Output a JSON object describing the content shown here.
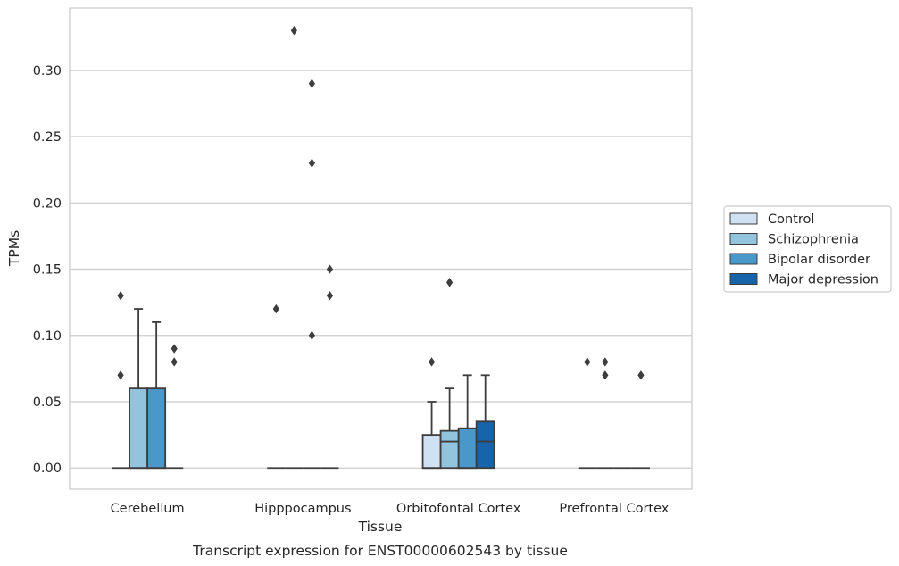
{
  "chart_data": {
    "type": "box",
    "title": "",
    "caption": "Transcript expression for ENST00000602543 by tissue",
    "xlabel": "Tissue",
    "ylabel": "TPMs",
    "ylim": [
      -0.016,
      0.347
    ],
    "yticks": [
      "0.00",
      "0.05",
      "0.10",
      "0.15",
      "0.20",
      "0.25",
      "0.30"
    ],
    "grid": true,
    "legend_position": "right",
    "categories": [
      "Cerebellum",
      "Hipppocampus",
      "Orbitofontal Cortex",
      "Prefrontal Cortex"
    ],
    "series": [
      {
        "name": "Control",
        "color": "#cfe1f2",
        "boxes": [
          {
            "q1": 0,
            "median": 0,
            "q3": 0,
            "whisker_low": 0,
            "whisker_high": 0,
            "outliers": [
              0.13,
              0.07
            ]
          },
          {
            "q1": 0,
            "median": 0,
            "q3": 0,
            "whisker_low": 0,
            "whisker_high": 0,
            "outliers": [
              0.12
            ]
          },
          {
            "q1": 0,
            "median": 0,
            "q3": 0.025,
            "whisker_low": 0,
            "whisker_high": 0.05,
            "outliers": [
              0.08
            ]
          },
          {
            "q1": 0,
            "median": 0,
            "q3": 0,
            "whisker_low": 0,
            "whisker_high": 0,
            "outliers": [
              0.08
            ]
          }
        ]
      },
      {
        "name": "Schizophrenia",
        "color": "#93c4de",
        "boxes": [
          {
            "q1": 0,
            "median": 0,
            "q3": 0.06,
            "whisker_low": 0,
            "whisker_high": 0.12,
            "outliers": []
          },
          {
            "q1": 0,
            "median": 0,
            "q3": 0,
            "whisker_low": 0,
            "whisker_high": 0,
            "outliers": [
              0.33
            ]
          },
          {
            "q1": 0,
            "median": 0.02,
            "q3": 0.028,
            "whisker_low": 0,
            "whisker_high": 0.06,
            "outliers": [
              0.14
            ]
          },
          {
            "q1": 0,
            "median": 0,
            "q3": 0,
            "whisker_low": 0,
            "whisker_high": 0,
            "outliers": [
              0.08,
              0.07
            ]
          }
        ]
      },
      {
        "name": "Bipolar disorder",
        "color": "#4a98c9",
        "boxes": [
          {
            "q1": 0,
            "median": 0,
            "q3": 0.06,
            "whisker_low": 0,
            "whisker_high": 0.11,
            "outliers": []
          },
          {
            "q1": 0,
            "median": 0,
            "q3": 0,
            "whisker_low": 0,
            "whisker_high": 0,
            "outliers": [
              0.29,
              0.23,
              0.1
            ]
          },
          {
            "q1": 0,
            "median": 0,
            "q3": 0.03,
            "whisker_low": 0,
            "whisker_high": 0.07,
            "outliers": []
          },
          {
            "q1": 0,
            "median": 0,
            "q3": 0,
            "whisker_low": 0,
            "whisker_high": 0,
            "outliers": []
          }
        ]
      },
      {
        "name": "Major depression",
        "color": "#1764ab",
        "boxes": [
          {
            "q1": 0,
            "median": 0,
            "q3": 0,
            "whisker_low": 0,
            "whisker_high": 0,
            "outliers": [
              0.09,
              0.08
            ]
          },
          {
            "q1": 0,
            "median": 0,
            "q3": 0,
            "whisker_low": 0,
            "whisker_high": 0,
            "outliers": [
              0.15,
              0.13
            ]
          },
          {
            "q1": 0,
            "median": 0.02,
            "q3": 0.035,
            "whisker_low": 0,
            "whisker_high": 0.07,
            "outliers": []
          },
          {
            "q1": 0,
            "median": 0,
            "q3": 0,
            "whisker_low": 0,
            "whisker_high": 0,
            "outliers": [
              0.07
            ]
          }
        ]
      }
    ]
  }
}
